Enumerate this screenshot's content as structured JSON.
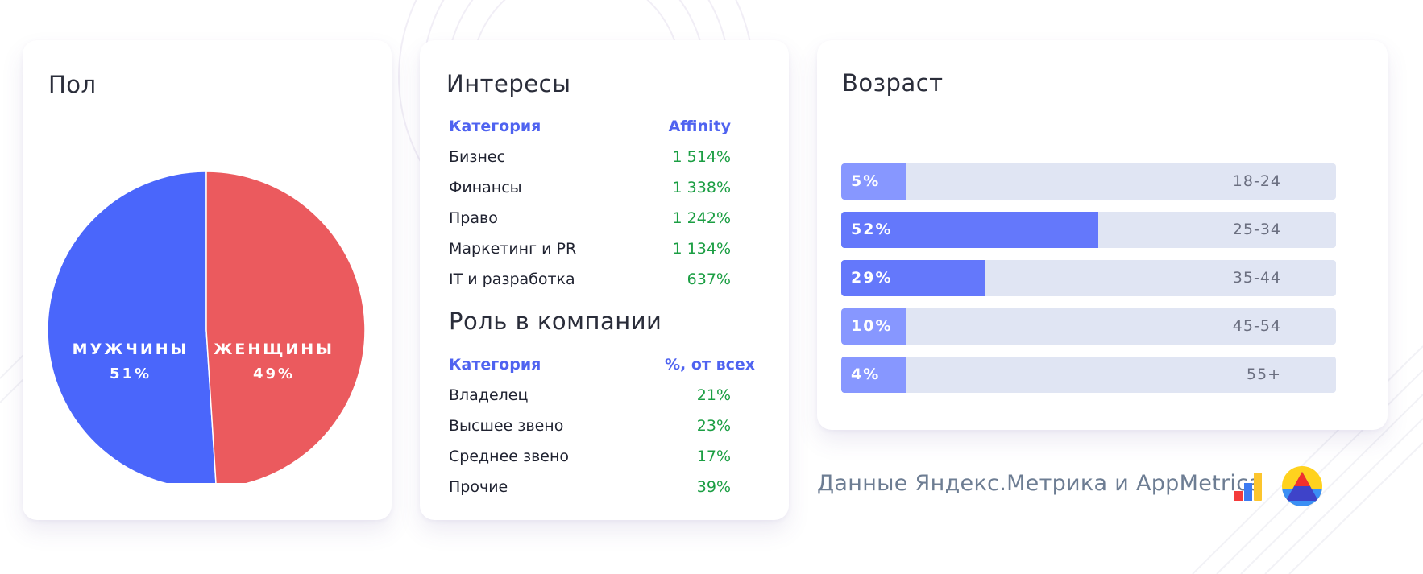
{
  "source_text": "Данные Яндекс.Метрика и AppMetrica",
  "colors": {
    "male": "#4a66fb",
    "female": "#eb5a5e",
    "header_blue": "#4f63f0",
    "value_green": "#1b9e43",
    "bar_light": "#8797ff",
    "bar_dark": "#6478fb",
    "bar_track": "#e0e5f3"
  },
  "gender": {
    "title": "Пол",
    "labels": [
      {
        "name": "МУЖЧИНЫ",
        "pct": "51%"
      },
      {
        "name": "ЖЕНЩИНЫ",
        "pct": "49%"
      }
    ]
  },
  "interests": {
    "title": "Интересы",
    "header": {
      "category": "Категория",
      "value": "Affinity"
    },
    "rows": [
      {
        "category": "Бизнес",
        "value": "1 514%"
      },
      {
        "category": "Финансы",
        "value": "1 338%"
      },
      {
        "category": "Право",
        "value": "1 242%"
      },
      {
        "category": "Маркетинг и PR",
        "value": "1 134%"
      },
      {
        "category": "IT и разработка",
        "value": "637%"
      }
    ]
  },
  "roles": {
    "title": "Роль в компании",
    "header": {
      "category": "Категория",
      "value": "%, от всех"
    },
    "rows": [
      {
        "category": "Владелец",
        "value": "21%"
      },
      {
        "category": "Высшее звено",
        "value": "23%"
      },
      {
        "category": "Среднее звено",
        "value": "17%"
      },
      {
        "category": "Прочие",
        "value": "39%"
      }
    ]
  },
  "age": {
    "title": "Возраст",
    "rows": [
      {
        "pct_label": "5%",
        "age": "18-24"
      },
      {
        "pct_label": "52%",
        "age": "25-34"
      },
      {
        "pct_label": "29%",
        "age": "35-44"
      },
      {
        "pct_label": "10%",
        "age": "45-54"
      },
      {
        "pct_label": "4%",
        "age": "55+"
      }
    ]
  },
  "chart_data": [
    {
      "type": "pie",
      "title": "Пол",
      "categories": [
        "МУЖЧИНЫ",
        "ЖЕНЩИНЫ"
      ],
      "values": [
        51,
        49
      ]
    },
    {
      "type": "table",
      "title": "Интересы",
      "columns": [
        "Категория",
        "Affinity"
      ],
      "rows": [
        [
          "Бизнес",
          "1 514%"
        ],
        [
          "Финансы",
          "1 338%"
        ],
        [
          "Право",
          "1 242%"
        ],
        [
          "Маркетинг и PR",
          "1 134%"
        ],
        [
          "IT и разработка",
          "637%"
        ]
      ]
    },
    {
      "type": "table",
      "title": "Роль в компании",
      "columns": [
        "Категория",
        "%, от всех"
      ],
      "rows": [
        [
          "Владелец",
          "21%"
        ],
        [
          "Высшее звено",
          "23%"
        ],
        [
          "Среднее звено",
          "17%"
        ],
        [
          "Прочие",
          "39%"
        ]
      ]
    },
    {
      "type": "bar",
      "title": "Возраст",
      "orientation": "horizontal",
      "categories": [
        "18-24",
        "25-34",
        "35-44",
        "45-54",
        "55+"
      ],
      "values": [
        5,
        52,
        29,
        10,
        4
      ],
      "xlim": [
        0,
        100
      ]
    }
  ]
}
